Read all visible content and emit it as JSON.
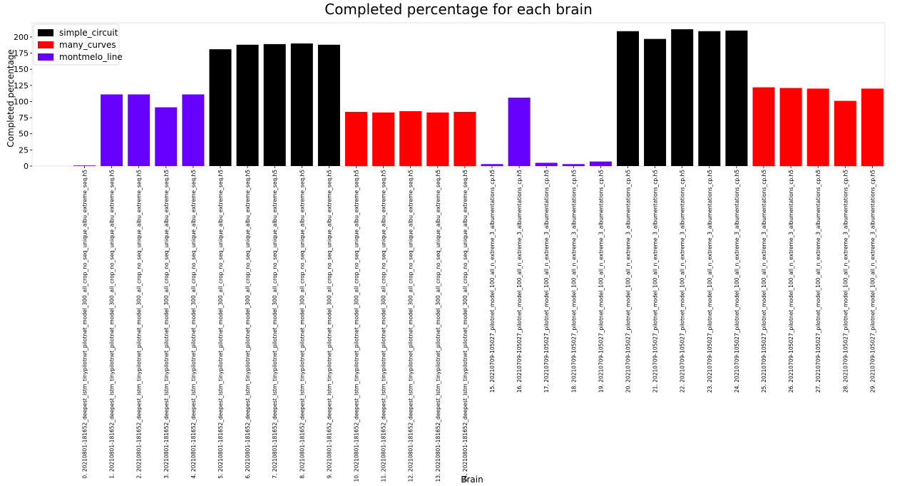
{
  "chart_data": {
    "type": "bar",
    "title": "Completed percentage for each brain",
    "xlabel": "Brain",
    "ylabel": "Completed percentage",
    "ylim": [
      0,
      222
    ],
    "yticks": [
      0,
      25,
      50,
      75,
      100,
      125,
      150,
      175,
      200
    ],
    "grid": false,
    "legend_position": "top-left",
    "series": [
      {
        "name": "simple_circuit",
        "color": "#000000"
      },
      {
        "name": "many_curves",
        "color": "#ff0000"
      },
      {
        "name": "montmelo_line",
        "color": "#6600ff"
      }
    ],
    "categories": [
      "0. 20210801-181652_deepest_lstm_tinypilotnet_pilotnet_model_300_all_crop_no_seq_unique_albu_extreme_seq.h5",
      "1. 20210801-181652_deepest_lstm_tinypilotnet_pilotnet_model_300_all_crop_no_seq_unique_albu_extreme_seq.h5",
      "2. 20210801-181652_deepest_lstm_tinypilotnet_pilotnet_model_300_all_crop_no_seq_unique_albu_extreme_seq.h5",
      "3. 20210801-181652_deepest_lstm_tinypilotnet_pilotnet_model_300_all_crop_no_seq_unique_albu_extreme_seq.h5",
      "4. 20210801-181652_deepest_lstm_tinypilotnet_pilotnet_model_300_all_crop_no_seq_unique_albu_extreme_seq.h5",
      "5. 20210801-181652_deepest_lstm_tinypilotnet_pilotnet_model_300_all_crop_no_seq_unique_albu_extreme_seq.h5",
      "6. 20210801-181652_deepest_lstm_tinypilotnet_pilotnet_model_300_all_crop_no_seq_unique_albu_extreme_seq.h5",
      "7. 20210801-181652_deepest_lstm_tinypilotnet_pilotnet_model_300_all_crop_no_seq_unique_albu_extreme_seq.h5",
      "8. 20210801-181652_deepest_lstm_tinypilotnet_pilotnet_model_300_all_crop_no_seq_unique_albu_extreme_seq.h5",
      "9. 20210801-181652_deepest_lstm_tinypilotnet_pilotnet_model_300_all_crop_no_seq_unique_albu_extreme_seq.h5",
      "10. 20210801-181652_deepest_lstm_tinypilotnet_pilotnet_model_300_all_crop_no_seq_unique_albu_extreme_seq.h5",
      "11. 20210801-181652_deepest_lstm_tinypilotnet_pilotnet_model_300_all_crop_no_seq_unique_albu_extreme_seq.h5",
      "12. 20210801-181652_deepest_lstm_tinypilotnet_pilotnet_model_300_all_crop_no_seq_unique_albu_extreme_seq.h5",
      "13. 20210801-181652_deepest_lstm_tinypilotnet_pilotnet_model_300_all_crop_no_seq_unique_albu_extreme_seq.h5",
      "14. 20210801-181652_deepest_lstm_tinypilotnet_pilotnet_model_300_all_crop_no_seq_unique_albu_extreme_seq.h5",
      "15. 20210709-105027_pilotnet_model_100_all_n_extreme_3_albumentations_cp.h5",
      "16. 20210709-105027_pilotnet_model_100_all_n_extreme_3_albumentations_cp.h5",
      "17. 20210709-105027_pilotnet_model_100_all_n_extreme_3_albumentations_cp.h5",
      "18. 20210709-105027_pilotnet_model_100_all_n_extreme_3_albumentations_cp.h5",
      "19. 20210709-105027_pilotnet_model_100_all_n_extreme_3_albumentations_cp.h5",
      "20. 20210709-105027_pilotnet_model_100_all_n_extreme_3_albumentations_cp.h5",
      "21. 20210709-105027_pilotnet_model_100_all_n_extreme_3_albumentations_cp.h5",
      "22. 20210709-105027_pilotnet_model_100_all_n_extreme_3_albumentations_cp.h5",
      "23. 20210709-105027_pilotnet_model_100_all_n_extreme_3_albumentations_cp.h5",
      "24. 20210709-105027_pilotnet_model_100_all_n_extreme_3_albumentations_cp.h5",
      "25. 20210709-105027_pilotnet_model_100_all_n_extreme_3_albumentations_cp.h5",
      "26. 20210709-105027_pilotnet_model_100_all_n_extreme_3_albumentations_cp.h5",
      "27. 20210709-105027_pilotnet_model_100_all_n_extreme_3_albumentations_cp.h5",
      "28. 20210709-105027_pilotnet_model_100_all_n_extreme_3_albumentations_cp.h5",
      "29. 20210709-105027_pilotnet_model_100_all_n_extreme_3_albumentations_cp.h5"
    ],
    "values": [
      0,
      111,
      111,
      91,
      111,
      181,
      188,
      189,
      190,
      188,
      84,
      83,
      85,
      83,
      84,
      3,
      106,
      5,
      3,
      7,
      209,
      197,
      212,
      209,
      210,
      122,
      121,
      120,
      101,
      120
    ],
    "bar_series": [
      "montmelo_line",
      "montmelo_line",
      "montmelo_line",
      "montmelo_line",
      "montmelo_line",
      "simple_circuit",
      "simple_circuit",
      "simple_circuit",
      "simple_circuit",
      "simple_circuit",
      "many_curves",
      "many_curves",
      "many_curves",
      "many_curves",
      "many_curves",
      "montmelo_line",
      "montmelo_line",
      "montmelo_line",
      "montmelo_line",
      "montmelo_line",
      "simple_circuit",
      "simple_circuit",
      "simple_circuit",
      "simple_circuit",
      "simple_circuit",
      "many_curves",
      "many_curves",
      "many_curves",
      "many_curves",
      "many_curves"
    ]
  }
}
